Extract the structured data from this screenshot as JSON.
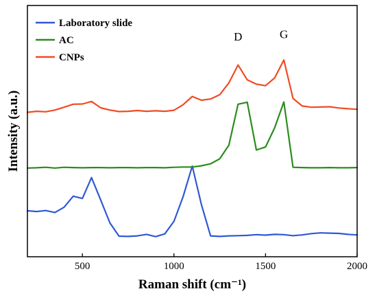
{
  "chart_data": {
    "type": "line",
    "title": "",
    "xlabel": "Raman shift (cm⁻¹)",
    "ylabel": "Intensity (a.u.)",
    "xlim": [
      200,
      2000
    ],
    "ylim": [
      0,
      1
    ],
    "x_ticks": [
      500,
      1000,
      1500,
      2000
    ],
    "y_ticks_shown": false,
    "grid": false,
    "legend_position": "top-left",
    "annotations": [
      {
        "text": "D",
        "x": 1350,
        "y": 0.86
      },
      {
        "text": "G",
        "x": 1600,
        "y": 0.87
      }
    ],
    "x": [
      200,
      250,
      300,
      350,
      400,
      450,
      500,
      550,
      600,
      650,
      700,
      750,
      800,
      850,
      900,
      950,
      1000,
      1050,
      1100,
      1150,
      1200,
      1250,
      1300,
      1350,
      1400,
      1450,
      1500,
      1550,
      1600,
      1650,
      1700,
      1750,
      1800,
      1850,
      1900,
      1950,
      2000
    ],
    "series": [
      {
        "name": "Laboratory slide",
        "color": "#2f58d4",
        "values": [
          0.183,
          0.18,
          0.184,
          0.176,
          0.197,
          0.241,
          0.232,
          0.315,
          0.226,
          0.135,
          0.082,
          0.081,
          0.083,
          0.089,
          0.08,
          0.091,
          0.141,
          0.239,
          0.361,
          0.207,
          0.083,
          0.081,
          0.083,
          0.084,
          0.085,
          0.088,
          0.086,
          0.089,
          0.088,
          0.084,
          0.087,
          0.092,
          0.095,
          0.094,
          0.093,
          0.089,
          0.087
        ]
      },
      {
        "name": "AC",
        "color": "#2a8c1c",
        "values": [
          0.353,
          0.354,
          0.356,
          0.353,
          0.356,
          0.355,
          0.354,
          0.355,
          0.355,
          0.354,
          0.355,
          0.355,
          0.354,
          0.355,
          0.355,
          0.354,
          0.356,
          0.357,
          0.357,
          0.362,
          0.37,
          0.39,
          0.444,
          0.607,
          0.615,
          0.425,
          0.437,
          0.514,
          0.616,
          0.356,
          0.355,
          0.354,
          0.354,
          0.355,
          0.354,
          0.354,
          0.355
        ]
      },
      {
        "name": "CNPs",
        "color": "#f04a22",
        "values": [
          0.575,
          0.579,
          0.577,
          0.584,
          0.595,
          0.607,
          0.608,
          0.618,
          0.593,
          0.584,
          0.578,
          0.579,
          0.582,
          0.579,
          0.581,
          0.579,
          0.583,
          0.605,
          0.638,
          0.623,
          0.628,
          0.645,
          0.692,
          0.763,
          0.704,
          0.687,
          0.681,
          0.712,
          0.783,
          0.63,
          0.6,
          0.595,
          0.596,
          0.597,
          0.592,
          0.589,
          0.587
        ]
      }
    ]
  }
}
